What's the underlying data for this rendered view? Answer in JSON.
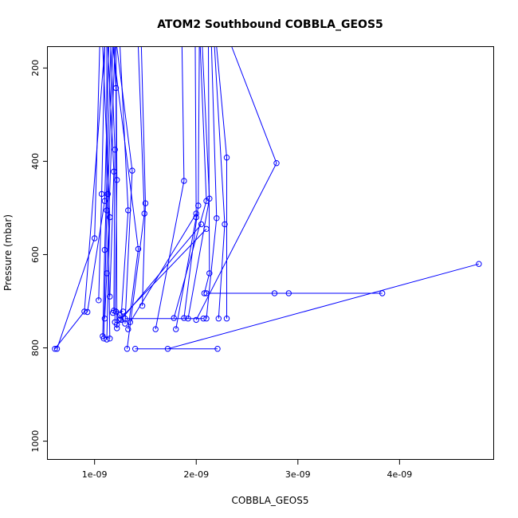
{
  "chart_data": {
    "type": "line",
    "title": "ATOM2 Southbound COBBLA_GEOS5",
    "xlabel": "COBBLA_GEOS5",
    "ylabel": "Pressure (mbar)",
    "xlim": [
      5.4e-10,
      4.93e-09
    ],
    "ylim": [
      1040,
      155
    ],
    "y_reversed": true,
    "x_ticks": [
      {
        "value": 1e-09,
        "label": "1e-09"
      },
      {
        "value": 2e-09,
        "label": "2e-09"
      },
      {
        "value": 3e-09,
        "label": "3e-09"
      },
      {
        "value": 4e-09,
        "label": "4e-09"
      }
    ],
    "y_ticks": [
      {
        "value": 200,
        "label": "200"
      },
      {
        "value": 400,
        "label": "400"
      },
      {
        "value": 600,
        "label": "600"
      },
      {
        "value": 800,
        "label": "800"
      },
      {
        "value": 1000,
        "label": "1000"
      }
    ],
    "color": "#0000ff",
    "grid": false,
    "legend": "none",
    "series": [
      {
        "points": [
          [
            6.3e-10,
            802
          ],
          [
            1e-09,
            565
          ],
          [
            1.05e-09,
            155
          ]
        ]
      },
      {
        "points": [
          [
            6.1e-10,
            802
          ],
          [
            9e-10,
            722
          ],
          [
            1.1e-09,
            155
          ]
        ]
      },
      {
        "points": [
          [
            9.3e-10,
            723
          ],
          [
            1.1e-09,
            485
          ],
          [
            1.14e-09,
            155
          ]
        ]
      },
      {
        "points": [
          [
            1.04e-09,
            698
          ],
          [
            1.07e-09,
            470
          ],
          [
            1.1e-09,
            155
          ]
        ]
      },
      {
        "points": [
          [
            1.08e-09,
            775
          ],
          [
            1.1e-09,
            590
          ],
          [
            1.16e-09,
            155
          ]
        ]
      },
      {
        "points": [
          [
            1.09e-09,
            780
          ],
          [
            1.12e-09,
            505
          ],
          [
            1.12e-09,
            155
          ]
        ]
      },
      {
        "points": [
          [
            1.1e-09,
            737
          ],
          [
            1.12e-09,
            640
          ],
          [
            1.2e-09,
            155
          ]
        ]
      },
      {
        "points": [
          [
            1.12e-09,
            782
          ],
          [
            1.15e-09,
            520
          ],
          [
            1.08e-09,
            155
          ]
        ]
      },
      {
        "points": [
          [
            1.15e-09,
            780
          ],
          [
            1.13e-09,
            470
          ],
          [
            1.18e-09,
            155
          ]
        ]
      },
      {
        "points": [
          [
            1.15e-09,
            690
          ],
          [
            1.19e-09,
            422
          ],
          [
            1.13e-09,
            155
          ]
        ]
      },
      {
        "points": [
          [
            1.19e-09,
            720
          ],
          [
            1.2e-09,
            375
          ],
          [
            1.16e-09,
            155
          ]
        ]
      },
      {
        "points": [
          [
            1.2e-09,
            745
          ],
          [
            1.22e-09,
            440
          ],
          [
            1.21e-09,
            155
          ]
        ]
      },
      {
        "points": [
          [
            1.22e-09,
            758
          ],
          [
            1.21e-09,
            243
          ],
          [
            1.19e-09,
            155
          ]
        ]
      },
      {
        "points": [
          [
            1.26e-09,
            740
          ],
          [
            1.33e-09,
            505
          ],
          [
            1.25e-09,
            155
          ]
        ]
      },
      {
        "points": [
          [
            1.3e-09,
            748
          ],
          [
            1.37e-09,
            420
          ],
          [
            1.22e-09,
            155
          ]
        ]
      },
      {
        "points": [
          [
            1.33e-09,
            760
          ],
          [
            1.43e-09,
            588
          ],
          [
            1.18e-09,
            155
          ]
        ]
      },
      {
        "points": [
          [
            1.32e-09,
            802
          ],
          [
            1.49e-09,
            512
          ],
          [
            1.43e-09,
            155
          ]
        ]
      },
      {
        "points": [
          [
            1.47e-09,
            710
          ],
          [
            1.5e-09,
            490
          ],
          [
            1.46e-09,
            155
          ]
        ]
      },
      {
        "points": [
          [
            1.6e-09,
            760
          ],
          [
            1.88e-09,
            442
          ],
          [
            1.86e-09,
            155
          ]
        ]
      },
      {
        "points": [
          [
            1.8e-09,
            760
          ],
          [
            2e-09,
            520
          ],
          [
            1.99e-09,
            155
          ]
        ]
      },
      {
        "points": [
          [
            1.88e-09,
            736
          ],
          [
            2.02e-09,
            495
          ],
          [
            2.03e-09,
            155
          ]
        ]
      },
      {
        "points": [
          [
            1.78e-09,
            736
          ],
          [
            2.1e-09,
            485
          ],
          [
            2.04e-09,
            155
          ]
        ]
      },
      {
        "points": [
          [
            1.92e-09,
            737
          ],
          [
            2.13e-09,
            480
          ],
          [
            2.06e-09,
            155
          ]
        ]
      },
      {
        "points": [
          [
            2.08e-09,
            683
          ],
          [
            2.13e-09,
            640
          ],
          [
            2.12e-09,
            155
          ]
        ]
      },
      {
        "points": [
          [
            2.1e-09,
            737
          ],
          [
            2.2e-09,
            522
          ],
          [
            2.15e-09,
            155
          ]
        ]
      },
      {
        "points": [
          [
            2.22e-09,
            737
          ],
          [
            2.28e-09,
            535
          ],
          [
            2.18e-09,
            155
          ]
        ]
      },
      {
        "points": [
          [
            2.3e-09,
            737
          ],
          [
            2.3e-09,
            392
          ],
          [
            2.2e-09,
            155
          ]
        ]
      },
      {
        "points": [
          [
            2e-09,
            740
          ],
          [
            2.79e-09,
            404
          ],
          [
            2.35e-09,
            155
          ]
        ]
      },
      {
        "points": [
          [
            1.72e-09,
            802
          ],
          [
            4.78e-09,
            620
          ]
        ]
      },
      {
        "points": [
          [
            1.4e-09,
            802
          ],
          [
            2.21e-09,
            802
          ]
        ]
      },
      {
        "points": [
          [
            2.1e-09,
            683
          ],
          [
            2.77e-09,
            683
          ],
          [
            2.91e-09,
            683
          ],
          [
            3.83e-09,
            683
          ]
        ]
      },
      {
        "points": [
          [
            1.3e-09,
            737
          ],
          [
            2.07e-09,
            737
          ]
        ]
      },
      {
        "points": [
          [
            1.21e-09,
            722
          ],
          [
            1.28e-09,
            722
          ]
        ]
      },
      {
        "points": [
          [
            1.25e-09,
            730
          ],
          [
            1.18e-09,
            725
          ]
        ]
      },
      {
        "points": [
          [
            1.35e-09,
            745
          ],
          [
            2e-09,
            512
          ]
        ]
      },
      {
        "points": [
          [
            1.22e-09,
            750
          ],
          [
            2.05e-09,
            535
          ]
        ]
      },
      {
        "points": [
          [
            1.25e-09,
            738
          ],
          [
            2.1e-09,
            545
          ]
        ]
      }
    ]
  }
}
